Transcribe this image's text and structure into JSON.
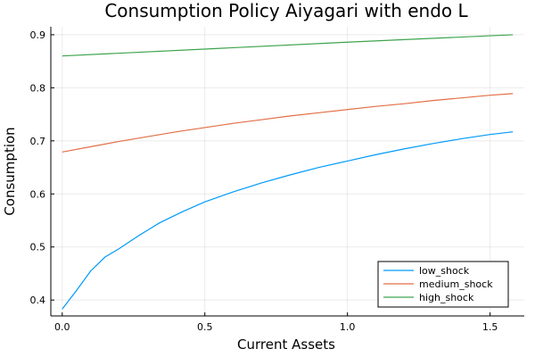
{
  "chart_data": {
    "type": "line",
    "title": "Consumption Policy Aiyagari with endo L",
    "xlabel": "Current Assets",
    "ylabel": "Consumption",
    "xlim": [
      -0.04,
      1.62
    ],
    "ylim": [
      0.37,
      0.915
    ],
    "xticks": [
      0.0,
      0.5,
      1.0,
      1.5
    ],
    "xtick_labels": [
      "0.0",
      "0.5",
      "1.0",
      "1.5"
    ],
    "yticks": [
      0.4,
      0.5,
      0.6,
      0.7,
      0.8,
      0.9
    ],
    "ytick_labels": [
      "0.4",
      "0.5",
      "0.6",
      "0.7",
      "0.8",
      "0.9"
    ],
    "grid": true,
    "legend_position": "bottom-right",
    "series": [
      {
        "name": "low_shock",
        "color": "#009af9",
        "x": [
          0.0,
          0.05,
          0.1,
          0.15,
          0.2,
          0.27,
          0.34,
          0.42,
          0.5,
          0.6,
          0.7,
          0.8,
          0.9,
          1.0,
          1.1,
          1.2,
          1.3,
          1.4,
          1.5,
          1.58
        ],
        "y": [
          0.383,
          0.418,
          0.455,
          0.481,
          0.497,
          0.522,
          0.545,
          0.566,
          0.585,
          0.604,
          0.621,
          0.636,
          0.65,
          0.662,
          0.674,
          0.685,
          0.695,
          0.704,
          0.712,
          0.717
        ]
      },
      {
        "name": "medium_shock",
        "color": "#e26f46",
        "x": [
          0.0,
          0.1,
          0.2,
          0.3,
          0.4,
          0.5,
          0.6,
          0.7,
          0.8,
          0.9,
          1.0,
          1.1,
          1.2,
          1.3,
          1.4,
          1.5,
          1.58
        ],
        "y": [
          0.679,
          0.689,
          0.699,
          0.708,
          0.717,
          0.725,
          0.733,
          0.74,
          0.747,
          0.753,
          0.759,
          0.765,
          0.77,
          0.776,
          0.781,
          0.786,
          0.789
        ]
      },
      {
        "name": "high_shock",
        "color": "#3da44d",
        "x": [
          0.0,
          0.5,
          1.0,
          1.58
        ],
        "y": [
          0.86,
          0.873,
          0.886,
          0.9
        ]
      }
    ]
  }
}
